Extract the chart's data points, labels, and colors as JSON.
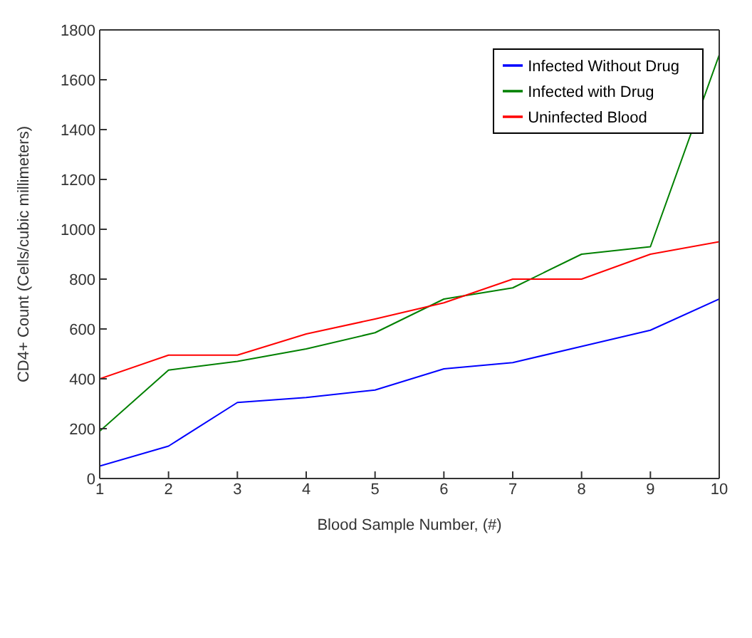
{
  "chart_data": {
    "type": "line",
    "xlabel": "Blood Sample Number, (#)",
    "ylabel": "CD4+ Count (Cells/cubic millimeters)",
    "x": [
      1,
      2,
      3,
      4,
      5,
      6,
      7,
      8,
      9,
      10
    ],
    "series": [
      {
        "name": "Infected Without Drug",
        "color": "#0000ff",
        "values": [
          50,
          130,
          305,
          325,
          355,
          440,
          465,
          530,
          595,
          720
        ]
      },
      {
        "name": "Infected with Drug",
        "color": "#008000",
        "values": [
          190,
          435,
          470,
          520,
          585,
          720,
          765,
          900,
          930,
          1700
        ]
      },
      {
        "name": "Uninfected Blood",
        "color": "#ff0000",
        "values": [
          400,
          495,
          495,
          580,
          640,
          705,
          800,
          800,
          900,
          950
        ]
      }
    ],
    "xlim": [
      1,
      10
    ],
    "xticks": [
      1,
      2,
      3,
      4,
      5,
      6,
      7,
      8,
      9,
      10
    ],
    "ylim": [
      0,
      1800
    ],
    "yticks": [
      0,
      200,
      400,
      600,
      800,
      1000,
      1200,
      1400,
      1600,
      1800
    ],
    "grid": false,
    "legend": "top right",
    "marker": "none",
    "line_style": "solid"
  }
}
